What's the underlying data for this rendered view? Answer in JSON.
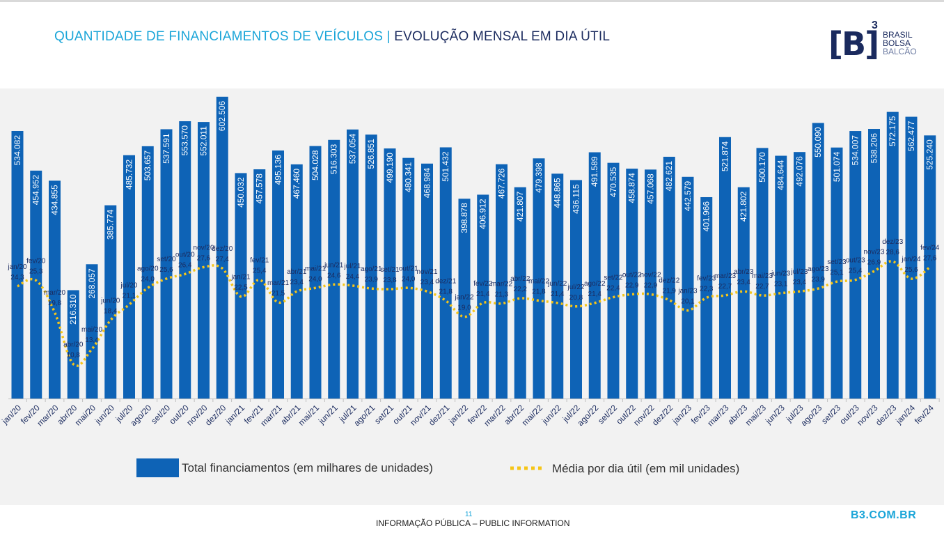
{
  "header": {
    "title_part1": "QUANTIDADE DE FINANCIAMENTOS DE VEÍCULOS",
    "separator": "|",
    "title_part2": "EVOLUÇÃO MENSAL EM DIA ÚTIL"
  },
  "logo": {
    "mark": "[B]",
    "superscript": "3",
    "line1": "BRASIL",
    "line2": "BOLSA",
    "line3": "BALCÃO"
  },
  "colors": {
    "bar": "#0e63b6",
    "line": "#f5c518",
    "title_accent": "#1aa5d8",
    "title_dark": "#1a2a5e"
  },
  "chart_data": {
    "type": "bar",
    "title": "",
    "categories": [
      "jan/20",
      "fev/20",
      "mar/20",
      "abr/20",
      "mai/20",
      "jun/20",
      "jul/20",
      "ago/20",
      "set/20",
      "out/20",
      "nov/20",
      "dez/20",
      "jan/21",
      "fev/21",
      "mar/21",
      "abr/21",
      "mai/21",
      "jun/21",
      "jul/21",
      "ago/21",
      "set/21",
      "out/21",
      "nov/21",
      "dez/21",
      "jan/22",
      "fev/22",
      "mar/22",
      "abr/22",
      "mai/22",
      "jun/22",
      "jul/22",
      "ago/22",
      "set/22",
      "out/22",
      "nov/22",
      "dez/22",
      "jan/23",
      "fev/23",
      "mar/23",
      "abr/23",
      "mai/23",
      "jun/23",
      "jul/23",
      "ago/23",
      "set/23",
      "out/23",
      "nov/23",
      "dez/23",
      "jan/24",
      "fev/24"
    ],
    "series": [
      {
        "name": "Total financiamentos (em milhares de unidades)",
        "type": "bar",
        "values": [
          534.082,
          454.952,
          434.855,
          216.31,
          268.057,
          385.774,
          485.732,
          503.657,
          537.591,
          553.57,
          552.011,
          602.506,
          450.032,
          457.578,
          495.136,
          467.46,
          504.028,
          516.303,
          537.054,
          526.851,
          499.19,
          480.341,
          468.984,
          501.432,
          398.878,
          406.912,
          467.726,
          421.807,
          479.398,
          448.865,
          436.115,
          491.589,
          470.535,
          458.874,
          457.068,
          482.621,
          442.579,
          401.966,
          521.874,
          421.802,
          500.17,
          484.644,
          492.076,
          550.09,
          501.074,
          534.007,
          538.206,
          572.175,
          562.477,
          525.24
        ],
        "labels": [
          "534.082",
          "454.952",
          "434.855",
          "216.310",
          "268.057",
          "385.774",
          "485.732",
          "503.657",
          "537.591",
          "553.570",
          "552.011",
          "602.506",
          "450.032",
          "457.578",
          "495.136",
          "467.460",
          "504.028",
          "516.303",
          "537.054",
          "526.851",
          "499.190",
          "480.341",
          "468.984",
          "501.432",
          "398.878",
          "406.912",
          "467.726",
          "421.807",
          "479.398",
          "448.865",
          "436.115",
          "491.589",
          "470.535",
          "458.874",
          "457.068",
          "482.621",
          "442.579",
          "401.966",
          "521.874",
          "421.802",
          "500.170",
          "484.644",
          "492.076",
          "550.090",
          "501.074",
          "534.007",
          "538.206",
          "572.175",
          "562.477",
          "525.240"
        ]
      },
      {
        "name": "Média por dia útil (em mil unidades)",
        "type": "line",
        "values": [
          24.3,
          25.3,
          19.8,
          10.8,
          13.4,
          18.4,
          21.1,
          24.0,
          25.6,
          26.4,
          27.6,
          27.4,
          22.5,
          25.4,
          21.5,
          23.4,
          24.0,
          24.6,
          24.4,
          23.9,
          23.8,
          24.0,
          23.4,
          21.8,
          19.0,
          21.4,
          21.3,
          22.2,
          21.8,
          21.4,
          20.8,
          21.4,
          22.4,
          22.9,
          22.9,
          21.9,
          20.1,
          22.3,
          22.7,
          23.4,
          22.7,
          23.1,
          23.4,
          23.9,
          25.1,
          25.4,
          26.9,
          28.6,
          25.6,
          27.6
        ],
        "labels": [
          "24,3",
          "25,3",
          "19,8",
          "10,8",
          "13,4",
          "18,4",
          "21,1",
          "24,0",
          "25,6",
          "26,4",
          "27,6",
          "27,4",
          "22,5",
          "25,4",
          "21,5",
          "23,4",
          "24,0",
          "24,6",
          "24,4",
          "23,9",
          "23,8",
          "24,0",
          "23,4",
          "21,8",
          "19,0",
          "21,4",
          "21,3",
          "22,2",
          "21,8",
          "21,4",
          "20,8",
          "21,4",
          "22,4",
          "22,9",
          "22,9",
          "21,9",
          "20,1",
          "22,3",
          "22,7",
          "23,4",
          "22,7",
          "23,1",
          "23,4",
          "23,9",
          "25,1",
          "25,4",
          "26,9",
          "28,6",
          "25,6",
          "27,6"
        ]
      }
    ],
    "ylim_bars": [
      0,
      700
    ],
    "ylim_line": [
      0,
      38
    ],
    "grid": false,
    "legend_position": "bottom",
    "legend": [
      {
        "label": "Total financiamentos (em milhares de unidades)",
        "style": "bar"
      },
      {
        "label": "Média por dia útil (em mil unidades)",
        "style": "dotted-line"
      }
    ]
  },
  "footer": {
    "page_number": "11",
    "info": "INFORMAÇÃO PÚBLICA – PUBLIC INFORMATION",
    "url": "B3.COM.BR"
  }
}
